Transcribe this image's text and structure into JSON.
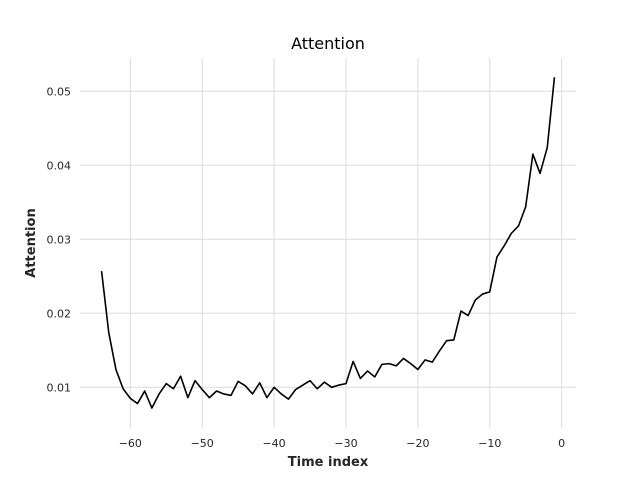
{
  "chart_data": {
    "type": "line",
    "title": "Attention",
    "xlabel": "Time index",
    "ylabel": "Attention",
    "xlim": [
      -67,
      2
    ],
    "ylim": [
      0.0045,
      0.0545
    ],
    "xticks": [
      -60,
      -50,
      -40,
      -30,
      -20,
      -10,
      0
    ],
    "xtick_labels": [
      "−60",
      "−50",
      "−40",
      "−30",
      "−20",
      "−10",
      "0"
    ],
    "yticks": [
      0.01,
      0.02,
      0.03,
      0.04,
      0.05
    ],
    "ytick_labels": [
      "0.01",
      "0.02",
      "0.03",
      "0.04",
      "0.05"
    ],
    "grid": true,
    "series": [
      {
        "color": "#000000",
        "x": [
          -64,
          -63,
          -62,
          -61,
          -60,
          -59,
          -58,
          -57,
          -56,
          -55,
          -54,
          -53,
          -52,
          -51,
          -50,
          -49,
          -48,
          -47,
          -46,
          -45,
          -44,
          -43,
          -42,
          -41,
          -40,
          -39,
          -38,
          -37,
          -36,
          -35,
          -34,
          -33,
          -32,
          -31,
          -30,
          -29,
          -28,
          -27,
          -26,
          -25,
          -24,
          -23,
          -22,
          -21,
          -20,
          -19,
          -18,
          -17,
          -16,
          -15,
          -14,
          -13,
          -12,
          -11,
          -10,
          -9,
          -8,
          -7,
          -6,
          -5,
          -4,
          -3,
          -2,
          -1
        ],
        "y": [
          0.0257,
          0.0174,
          0.0124,
          0.0098,
          0.0085,
          0.0078,
          0.0095,
          0.0072,
          0.0091,
          0.0105,
          0.0098,
          0.0115,
          0.0086,
          0.0109,
          0.0097,
          0.0086,
          0.0095,
          0.0091,
          0.0089,
          0.0108,
          0.0102,
          0.0091,
          0.0106,
          0.0086,
          0.01,
          0.0091,
          0.0084,
          0.0097,
          0.0103,
          0.0109,
          0.0098,
          0.0107,
          0.01,
          0.0103,
          0.0105,
          0.0135,
          0.0112,
          0.0122,
          0.0114,
          0.0131,
          0.0132,
          0.0129,
          0.0139,
          0.0132,
          0.0124,
          0.0137,
          0.0134,
          0.0149,
          0.0163,
          0.0164,
          0.0203,
          0.0197,
          0.0218,
          0.0226,
          0.0229,
          0.0276,
          0.0291,
          0.0308,
          0.0318,
          0.0344,
          0.0415,
          0.0389,
          0.0424,
          0.0519
        ]
      }
    ]
  }
}
